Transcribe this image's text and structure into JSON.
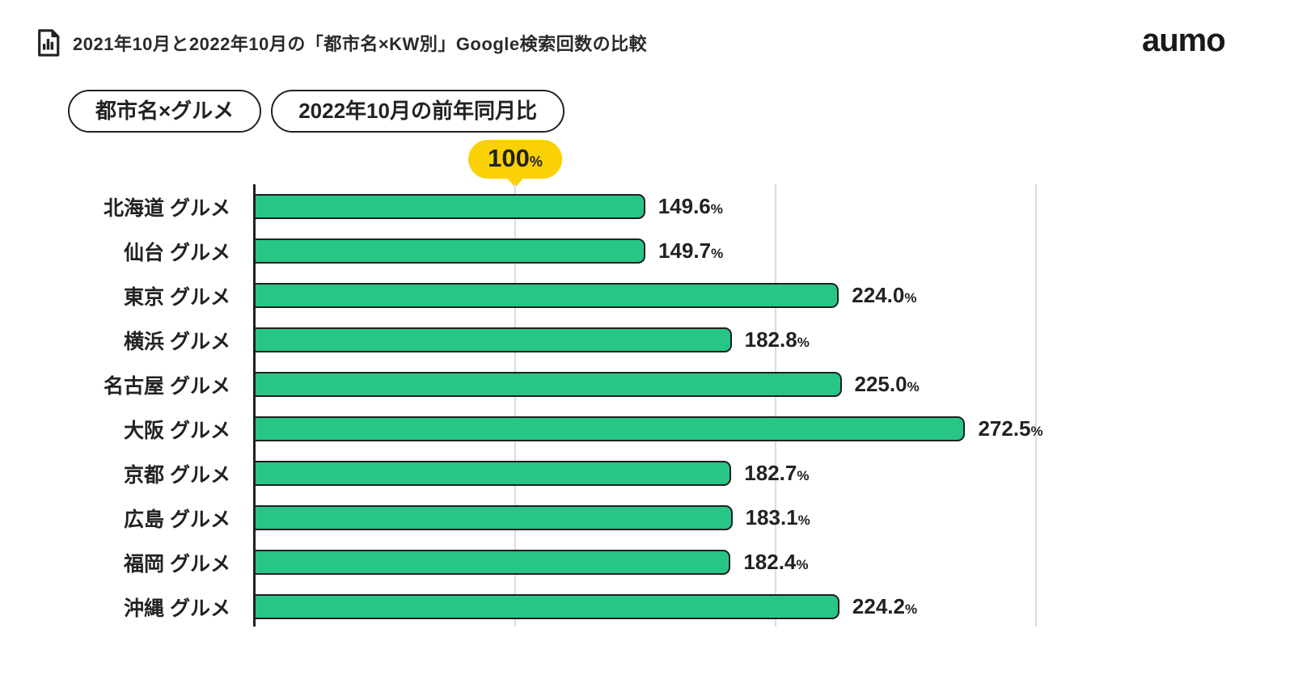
{
  "header": {
    "title": "2021年10月と2022年10月の「都市名×KW別」Google検索回数の比較",
    "logo": "aumo"
  },
  "badges": {
    "category": "都市名×グルメ",
    "period": "2022年10月の前年同月比"
  },
  "baseline_marker": {
    "value": "100",
    "unit": "%"
  },
  "chart_data": {
    "type": "bar",
    "orientation": "horizontal",
    "title": "2021年10月と2022年10月の「都市名×KW別」Google検索回数の比較",
    "unit": "%",
    "baseline": 100,
    "axis_range": [
      0,
      350
    ],
    "gridlines": [
      100,
      200,
      300
    ],
    "grid_on": true,
    "categories": [
      "北海道 グルメ",
      "仙台 グルメ",
      "東京 グルメ",
      "横浜 グルメ",
      "名古屋 グルメ",
      "大阪 グルメ",
      "京都 グルメ",
      "広島 グルメ",
      "福岡 グルメ",
      "沖縄 グルメ"
    ],
    "values": [
      149.6,
      149.7,
      224.0,
      182.8,
      225.0,
      272.5,
      182.7,
      183.1,
      182.4,
      224.2
    ],
    "value_labels": [
      "149.6",
      "149.7",
      "224.0",
      "182.8",
      "225.0",
      "272.5",
      "182.7",
      "183.1",
      "182.4",
      "224.2"
    ],
    "colors": {
      "bar_fill": "#28c686",
      "bar_border": "#1f1f1f",
      "axis": "#1f1f1f",
      "gridline": "#dcdcdc",
      "marker_bg": "#f9d104",
      "text": "#222222"
    }
  }
}
